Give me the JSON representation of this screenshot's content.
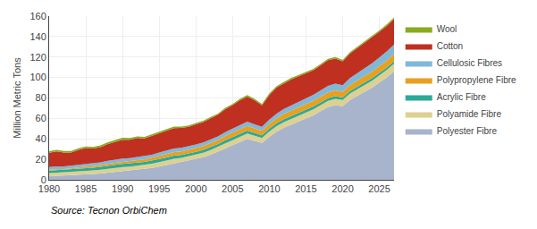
{
  "chart_data": {
    "type": "area",
    "stacked": true,
    "ylabel": "Million Metric Tons",
    "annotations": [
      "Source: Tecnon OrbiChem"
    ],
    "x": [
      1980,
      1981,
      1982,
      1983,
      1984,
      1985,
      1986,
      1987,
      1988,
      1989,
      1990,
      1991,
      1992,
      1993,
      1994,
      1995,
      1996,
      1997,
      1998,
      1999,
      2000,
      2001,
      2002,
      2003,
      2004,
      2005,
      2006,
      2007,
      2008,
      2009,
      2010,
      2011,
      2012,
      2013,
      2014,
      2015,
      2016,
      2017,
      2018,
      2019,
      2020,
      2021,
      2022,
      2023,
      2024,
      2025,
      2026,
      2027
    ],
    "series": [
      {
        "name": "Polyester Fibre",
        "color": "#a8b4cc",
        "values": [
          3.5,
          3.8,
          3.9,
          4.2,
          4.8,
          5.2,
          5.6,
          6.2,
          7.0,
          7.8,
          8.5,
          9.0,
          9.8,
          10.5,
          11.5,
          13.0,
          14.5,
          16.0,
          17.0,
          18.5,
          20.0,
          22.0,
          24.5,
          27.5,
          31.0,
          34.0,
          37.0,
          40.0,
          38.0,
          36.0,
          42.0,
          47.0,
          51.0,
          54.0,
          57.0,
          60.0,
          63.0,
          67.0,
          71.0,
          73.0,
          72.0,
          78.0,
          82.0,
          86.0,
          90.0,
          95.0,
          100.0,
          106.0
        ]
      },
      {
        "name": "Polyamide Fibre",
        "color": "#ddd090",
        "values": [
          3.0,
          3.1,
          3.1,
          3.2,
          3.3,
          3.4,
          3.5,
          3.6,
          3.8,
          3.9,
          4.0,
          4.0,
          4.1,
          4.1,
          4.2,
          4.3,
          4.4,
          4.5,
          4.4,
          4.4,
          4.5,
          4.5,
          4.6,
          4.7,
          4.9,
          5.0,
          5.1,
          5.2,
          5.0,
          4.8,
          5.2,
          5.4,
          5.5,
          5.6,
          5.7,
          5.8,
          5.9,
          6.0,
          6.1,
          6.2,
          6.0,
          6.3,
          6.5,
          6.7,
          6.9,
          7.1,
          7.3,
          7.5
        ]
      },
      {
        "name": "Acrylic Fibre",
        "color": "#2aaa98",
        "values": [
          2.5,
          2.6,
          2.5,
          2.5,
          2.7,
          2.8,
          2.7,
          2.8,
          3.0,
          3.0,
          3.0,
          2.9,
          2.9,
          2.8,
          2.9,
          3.0,
          3.0,
          3.0,
          2.9,
          2.8,
          2.8,
          2.7,
          2.7,
          2.7,
          2.8,
          2.8,
          2.8,
          2.9,
          2.8,
          2.7,
          2.8,
          2.8,
          2.8,
          2.8,
          2.8,
          2.7,
          2.7,
          2.6,
          2.6,
          2.5,
          2.5,
          2.5,
          2.5,
          2.5,
          2.5,
          2.4,
          2.4,
          2.4
        ]
      },
      {
        "name": "Polypropylene Fibre",
        "color": "#e8a020",
        "values": [
          1.0,
          1.1,
          1.1,
          1.2,
          1.3,
          1.4,
          1.5,
          1.6,
          1.8,
          2.0,
          2.2,
          2.3,
          2.4,
          2.5,
          2.7,
          3.0,
          3.2,
          3.5,
          3.5,
          3.6,
          3.8,
          3.8,
          3.9,
          4.0,
          4.2,
          4.3,
          4.5,
          4.6,
          4.5,
          4.3,
          4.7,
          5.0,
          5.2,
          5.3,
          5.4,
          5.5,
          5.6,
          5.7,
          5.8,
          5.8,
          5.6,
          5.9,
          6.1,
          6.3,
          6.5,
          6.7,
          6.9,
          7.1
        ]
      },
      {
        "name": "Cellulosic Fibres",
        "color": "#80b8d8",
        "values": [
          2.5,
          2.6,
          2.5,
          2.5,
          2.6,
          2.7,
          2.7,
          2.8,
          2.9,
          3.0,
          3.0,
          3.0,
          3.1,
          3.1,
          3.2,
          3.3,
          3.4,
          3.5,
          3.4,
          3.4,
          3.5,
          3.5,
          3.5,
          3.6,
          3.7,
          3.8,
          4.0,
          4.2,
          4.0,
          3.9,
          4.2,
          4.5,
          4.8,
          5.0,
          5.3,
          5.5,
          5.8,
          6.1,
          6.4,
          6.5,
          6.3,
          6.8,
          7.2,
          7.6,
          8.0,
          8.4,
          8.8,
          9.2
        ]
      },
      {
        "name": "Cotton",
        "color": "#c03020",
        "values": [
          14.0,
          14.5,
          13.5,
          13.0,
          14.5,
          15.5,
          14.5,
          15.0,
          16.5,
          17.5,
          18.5,
          18.0,
          18.5,
          17.5,
          18.5,
          19.5,
          19.5,
          20.0,
          19.5,
          19.0,
          19.5,
          20.0,
          21.0,
          21.0,
          22.5,
          23.0,
          24.5,
          24.5,
          23.5,
          21.0,
          24.0,
          25.5,
          25.0,
          25.5,
          25.0,
          24.5,
          24.0,
          24.5,
          25.0,
          24.5,
          23.5,
          24.0,
          24.5,
          25.0,
          25.0,
          25.0,
          25.0,
          25.0
        ]
      },
      {
        "name": "Wool",
        "color": "#8aaa20",
        "values": [
          1.5,
          1.5,
          1.5,
          1.5,
          1.6,
          1.6,
          1.6,
          1.7,
          1.7,
          1.8,
          1.8,
          1.7,
          1.6,
          1.5,
          1.5,
          1.5,
          1.5,
          1.5,
          1.4,
          1.4,
          1.4,
          1.3,
          1.3,
          1.3,
          1.3,
          1.3,
          1.3,
          1.4,
          1.4,
          1.3,
          1.4,
          1.4,
          1.4,
          1.4,
          1.4,
          1.4,
          1.4,
          1.4,
          1.4,
          1.4,
          1.3,
          1.4,
          1.4,
          1.4,
          1.4,
          1.5,
          1.5,
          1.5
        ]
      }
    ],
    "xlim": [
      1980,
      2027
    ],
    "xticks": [
      1980,
      1985,
      1990,
      1995,
      2000,
      2005,
      2010,
      2015,
      2020,
      2025
    ],
    "ylim": [
      0,
      160
    ],
    "yticks": [
      0,
      20,
      40,
      60,
      80,
      100,
      120,
      140,
      160
    ],
    "grid": true,
    "legend": "right"
  }
}
